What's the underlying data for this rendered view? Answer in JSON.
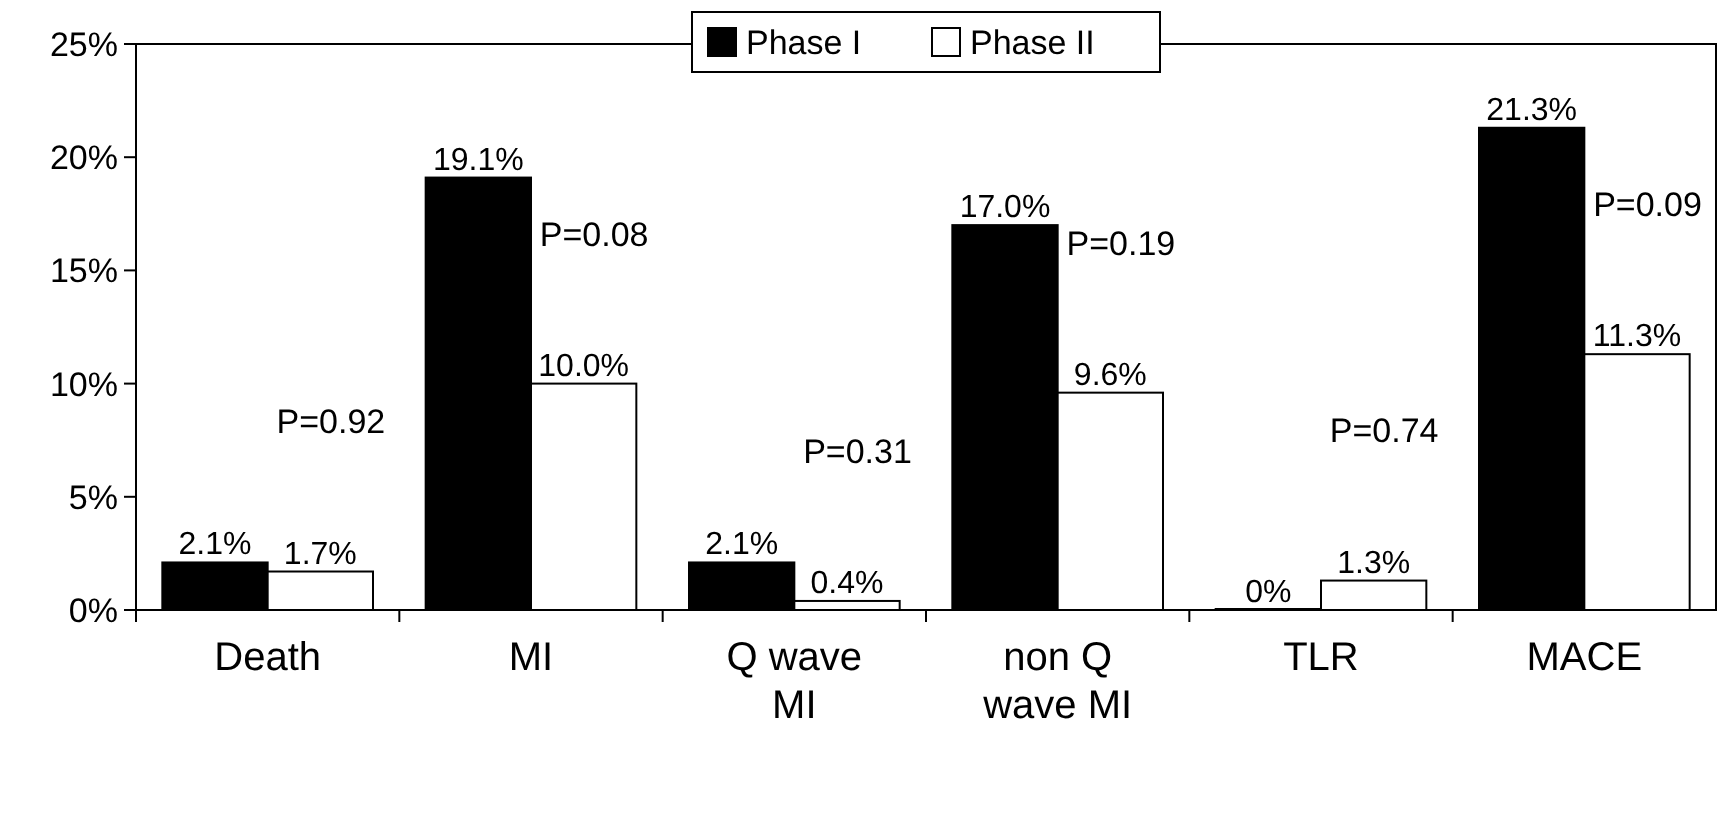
{
  "chart_data": {
    "type": "bar",
    "categories": [
      "Death",
      "MI",
      "Q wave MI",
      "non Q wave MI",
      "TLR",
      "MACE"
    ],
    "series": [
      {
        "name": "Phase I",
        "color": "#000000",
        "values": [
          2.1,
          19.1,
          2.1,
          17.0,
          0,
          21.3
        ],
        "value_labels": [
          "2.1%",
          "19.1%",
          "2.1%",
          "17.0%",
          "0%",
          "21.3%"
        ]
      },
      {
        "name": "Phase II",
        "color": "#ffffff",
        "values": [
          1.7,
          10.0,
          0.4,
          9.6,
          1.3,
          11.3
        ],
        "value_labels": [
          "1.7%",
          "10.0%",
          "0.4%",
          "9.6%",
          "1.3%",
          "11.3%"
        ]
      }
    ],
    "ylim": [
      0,
      25
    ],
    "yticks": [
      {
        "value": 0,
        "label": "0%"
      },
      {
        "value": 5,
        "label": "5%"
      },
      {
        "value": 10,
        "label": "10%"
      },
      {
        "value": 15,
        "label": "15%"
      },
      {
        "value": 20,
        "label": "20%"
      },
      {
        "value": 25,
        "label": "25%"
      }
    ],
    "legend": "top",
    "grid": false,
    "annotations": [
      "P=0.92",
      "P=0.08",
      "P=0.31",
      "P=0.19",
      "P=0.74",
      "P=0.09"
    ]
  }
}
